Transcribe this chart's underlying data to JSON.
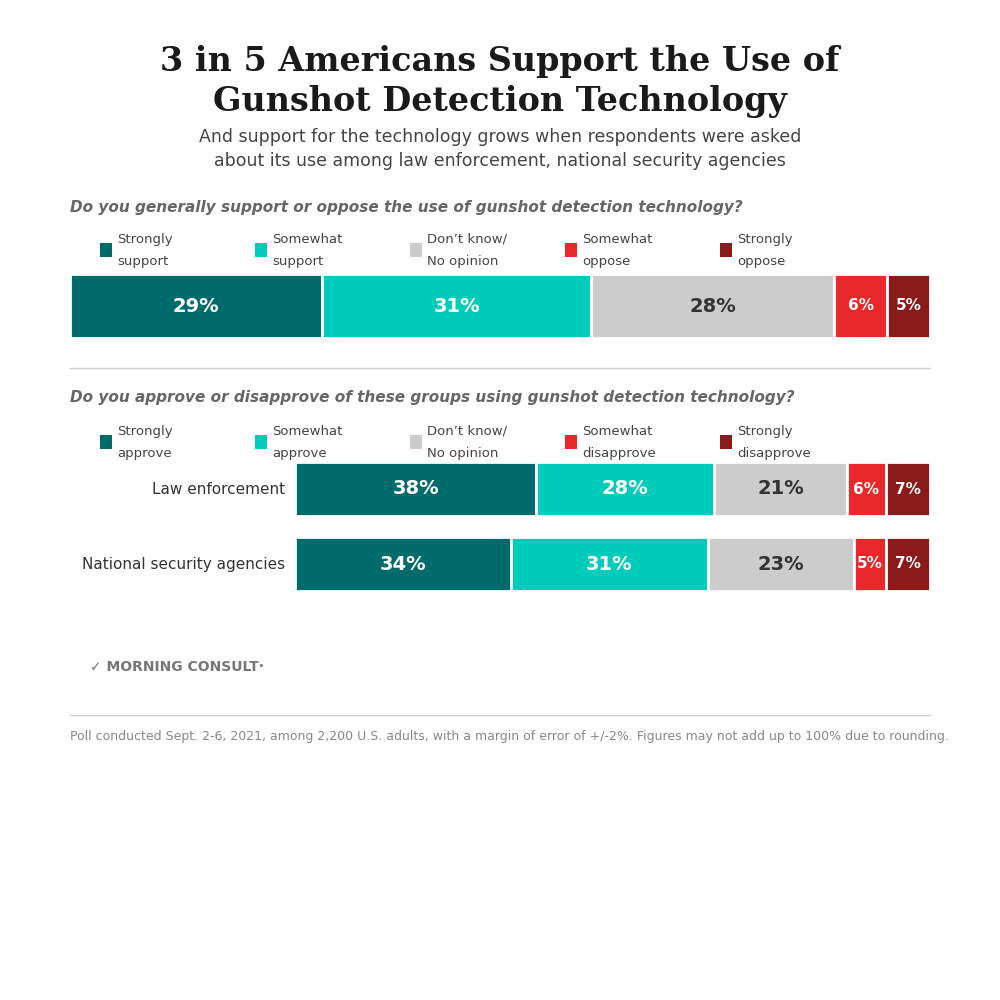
{
  "title": "3 in 5 Americans Support the Use of\nGunshot Detection Technology",
  "subtitle": "And support for the technology grows when respondents were asked\nabout its use among law enforcement, national security agencies",
  "bg_color": "#ffffff",
  "colors": [
    "#006b6b",
    "#00ccbb",
    "#cccccc",
    "#e8282a",
    "#8b1a1a"
  ],
  "section1": {
    "question": "Do you generally support or oppose the use of gunshot detection technology?",
    "legend_labels": [
      "Strongly\nsupport",
      "Somewhat\nsupport",
      "Don’t know/\nNo opinion",
      "Somewhat\noppose",
      "Strongly\noppose"
    ],
    "values": [
      29,
      31,
      28,
      6,
      5
    ]
  },
  "section2": {
    "question": "Do you approve or disapprove of these groups using gunshot detection technology?",
    "legend_labels": [
      "Strongly\napprove",
      "Somewhat\napprove",
      "Don’t know/\nNo opinion",
      "Somewhat\ndisapprove",
      "Strongly\ndisapprove"
    ],
    "bars": [
      {
        "label": "Law enforcement",
        "values": [
          38,
          28,
          21,
          6,
          7
        ]
      },
      {
        "label": "National security agencies",
        "values": [
          34,
          31,
          23,
          5,
          7
        ]
      }
    ]
  },
  "footer": "Poll conducted Sept. 2-6, 2021, among 2,200 U.S. adults, with a margin of error of +/-2%. Figures may not add up to 100% due to rounding.",
  "morning_consult": "M MORNING CONSULT·"
}
